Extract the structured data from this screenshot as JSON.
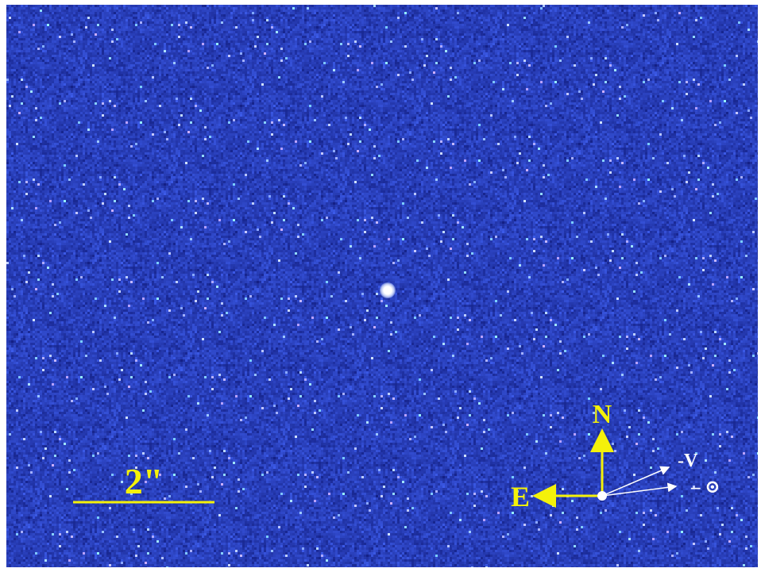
{
  "image": {
    "colors": {
      "background": "#1f2fb0",
      "annotation_yellow": "#f4f10a",
      "annotation_white": "#ffffff"
    }
  },
  "scale_bar": {
    "label": "2\""
  },
  "compass": {
    "north_label": "N",
    "east_label": "E",
    "velocity_label": "-V",
    "sun_label": "– ⊙"
  }
}
